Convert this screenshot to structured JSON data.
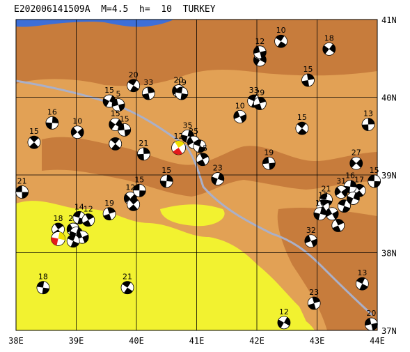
{
  "title": "E202006141509A  M=4.5  h=  10  TURKEY",
  "lon_labels": [
    "38E",
    "39E",
    "40E",
    "41E",
    "42E",
    "43E",
    "44E"
  ],
  "lat_labels": [
    "41N",
    "40N",
    "39N",
    "38N",
    "37N"
  ],
  "colors": {
    "low_land": "#f2f230",
    "mid_land": "#e2a155",
    "high_land": "#c77c3c",
    "sea": "#3d6fd8",
    "fault": "#aab0c9",
    "beachball_dark": "#000000",
    "beachball_light": "#ffffff",
    "main_event": "#e41a1c",
    "main_event_aux": "#f0e000"
  },
  "events": [
    {
      "lon": 38.1,
      "lat": 38.78,
      "depth": "21"
    },
    {
      "lon": 38.3,
      "lat": 39.42,
      "depth": "15"
    },
    {
      "lon": 38.6,
      "lat": 39.67,
      "depth": "16"
    },
    {
      "lon": 39.02,
      "lat": 39.55,
      "depth": "10"
    },
    {
      "lon": 38.45,
      "lat": 37.55,
      "depth": "18"
    },
    {
      "lon": 38.7,
      "lat": 38.3,
      "depth": "18"
    },
    {
      "lon": 38.7,
      "lat": 38.18,
      "depth": "",
      "main": true
    },
    {
      "lon": 38.95,
      "lat": 38.3,
      "depth": "21"
    },
    {
      "lon": 39.05,
      "lat": 38.45,
      "depth": "14"
    },
    {
      "lon": 39.2,
      "lat": 38.42,
      "depth": "12"
    },
    {
      "lon": 39.0,
      "lat": 38.25,
      "depth": ""
    },
    {
      "lon": 39.1,
      "lat": 38.2,
      "depth": ""
    },
    {
      "lon": 38.95,
      "lat": 38.15,
      "depth": ""
    },
    {
      "lon": 39.55,
      "lat": 38.5,
      "depth": "19"
    },
    {
      "lon": 39.55,
      "lat": 39.95,
      "depth": "15"
    },
    {
      "lon": 39.7,
      "lat": 39.9,
      "depth": "5"
    },
    {
      "lon": 39.95,
      "lat": 40.15,
      "depth": "20"
    },
    {
      "lon": 40.2,
      "lat": 40.05,
      "depth": "33"
    },
    {
      "lon": 39.65,
      "lat": 39.65,
      "depth": "15"
    },
    {
      "lon": 39.8,
      "lat": 39.58,
      "depth": "15"
    },
    {
      "lon": 39.65,
      "lat": 39.4,
      "depth": ""
    },
    {
      "lon": 40.12,
      "lat": 39.27,
      "depth": "21"
    },
    {
      "lon": 39.9,
      "lat": 38.7,
      "depth": "12"
    },
    {
      "lon": 40.05,
      "lat": 38.8,
      "depth": "15"
    },
    {
      "lon": 39.95,
      "lat": 38.62,
      "depth": ""
    },
    {
      "lon": 40.5,
      "lat": 38.92,
      "depth": "15"
    },
    {
      "lon": 40.7,
      "lat": 40.08,
      "depth": "20"
    },
    {
      "lon": 40.75,
      "lat": 40.05,
      "depth": "19"
    },
    {
      "lon": 40.7,
      "lat": 39.35,
      "depth": "12",
      "main": true
    },
    {
      "lon": 40.85,
      "lat": 39.5,
      "depth": "35"
    },
    {
      "lon": 40.95,
      "lat": 39.42,
      "depth": "25"
    },
    {
      "lon": 41.05,
      "lat": 39.37,
      "depth": ""
    },
    {
      "lon": 41.1,
      "lat": 39.2,
      "depth": "15"
    },
    {
      "lon": 41.35,
      "lat": 38.95,
      "depth": "23"
    },
    {
      "lon": 41.72,
      "lat": 39.75,
      "depth": "10"
    },
    {
      "lon": 41.95,
      "lat": 39.95,
      "depth": "33"
    },
    {
      "lon": 42.05,
      "lat": 39.92,
      "depth": "29"
    },
    {
      "lon": 42.05,
      "lat": 40.48,
      "depth": "10"
    },
    {
      "lon": 42.05,
      "lat": 40.58,
      "depth": "12"
    },
    {
      "lon": 42.4,
      "lat": 40.72,
      "depth": "10"
    },
    {
      "lon": 42.85,
      "lat": 40.22,
      "depth": "15"
    },
    {
      "lon": 43.2,
      "lat": 40.62,
      "depth": "18"
    },
    {
      "lon": 42.2,
      "lat": 39.15,
      "depth": "19"
    },
    {
      "lon": 42.75,
      "lat": 39.6,
      "depth": "15"
    },
    {
      "lon": 43.85,
      "lat": 39.65,
      "depth": "13"
    },
    {
      "lon": 43.65,
      "lat": 39.15,
      "depth": "27"
    },
    {
      "lon": 43.95,
      "lat": 38.92,
      "depth": "15"
    },
    {
      "lon": 43.7,
      "lat": 38.8,
      "depth": "17"
    },
    {
      "lon": 43.55,
      "lat": 38.85,
      "depth": "16"
    },
    {
      "lon": 43.4,
      "lat": 38.78,
      "depth": "31"
    },
    {
      "lon": 43.15,
      "lat": 38.68,
      "depth": "21"
    },
    {
      "lon": 43.1,
      "lat": 38.6,
      "depth": "13"
    },
    {
      "lon": 43.05,
      "lat": 38.5,
      "depth": "16"
    },
    {
      "lon": 43.25,
      "lat": 38.5,
      "depth": ""
    },
    {
      "lon": 43.45,
      "lat": 38.6,
      "depth": ""
    },
    {
      "lon": 43.35,
      "lat": 38.35,
      "depth": ""
    },
    {
      "lon": 43.6,
      "lat": 38.7,
      "depth": ""
    },
    {
      "lon": 42.9,
      "lat": 38.15,
      "depth": "32"
    },
    {
      "lon": 43.75,
      "lat": 37.6,
      "depth": "13"
    },
    {
      "lon": 42.95,
      "lat": 37.35,
      "depth": "23"
    },
    {
      "lon": 42.45,
      "lat": 37.1,
      "depth": "12"
    },
    {
      "lon": 43.9,
      "lat": 37.08,
      "depth": "20"
    },
    {
      "lon": 39.85,
      "lat": 37.55,
      "depth": "21"
    }
  ]
}
